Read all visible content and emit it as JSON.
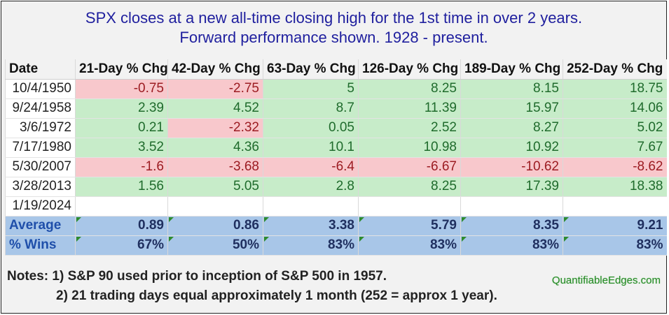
{
  "title": {
    "line1": "SPX closes at a new all-time closing high for the 1st time in over 2 years.",
    "line2": "Forward performance shown. 1928 - present."
  },
  "columns": [
    "Date",
    "21-Day % Chg",
    "42-Day % Chg",
    "63-Day % Chg",
    "126-Day % Chg",
    "189-Day % Chg",
    "252-Day % Chg"
  ],
  "rows": [
    {
      "date": "10/4/1950",
      "values": [
        "-0.75",
        "-2.75",
        "5",
        "8.25",
        "8.15",
        "18.75"
      ]
    },
    {
      "date": "9/24/1958",
      "values": [
        "2.39",
        "4.52",
        "8.7",
        "11.39",
        "15.97",
        "14.06"
      ]
    },
    {
      "date": "3/6/1972",
      "values": [
        "0.21",
        "-2.32",
        "0.05",
        "2.52",
        "8.27",
        "5.02"
      ]
    },
    {
      "date": "7/17/1980",
      "values": [
        "3.52",
        "4.36",
        "10.1",
        "10.98",
        "10.92",
        "7.67"
      ]
    },
    {
      "date": "5/30/2007",
      "values": [
        "-1.6",
        "-3.68",
        "-6.4",
        "-6.67",
        "-10.62",
        "-8.62"
      ]
    },
    {
      "date": "3/28/2013",
      "values": [
        "1.56",
        "5.05",
        "2.8",
        "8.25",
        "17.39",
        "18.38"
      ]
    },
    {
      "date": "1/19/2024",
      "values": [
        "",
        "",
        "",
        "",
        "",
        ""
      ]
    }
  ],
  "summary": [
    {
      "label": "Average",
      "values": [
        "0.89",
        "0.86",
        "3.38",
        "5.79",
        "8.35",
        "9.21"
      ]
    },
    {
      "label": "% Wins",
      "values": [
        "67%",
        "50%",
        "83%",
        "83%",
        "83%",
        "83%"
      ]
    }
  ],
  "colors": {
    "positive_fill": "#c7ecc9",
    "negative_fill": "#f8c8cc",
    "summary_fill": "#a8c6e8",
    "title_text": "#1f1f9e"
  },
  "notes": {
    "line1": "Notes: 1) S&P 90 used prior to inception of S&P 500 in 1957.",
    "line2": "2) 21 trading days equal approximately 1 month (252 = approx 1 year)."
  },
  "brand": "QuantifiableEdges.com"
}
